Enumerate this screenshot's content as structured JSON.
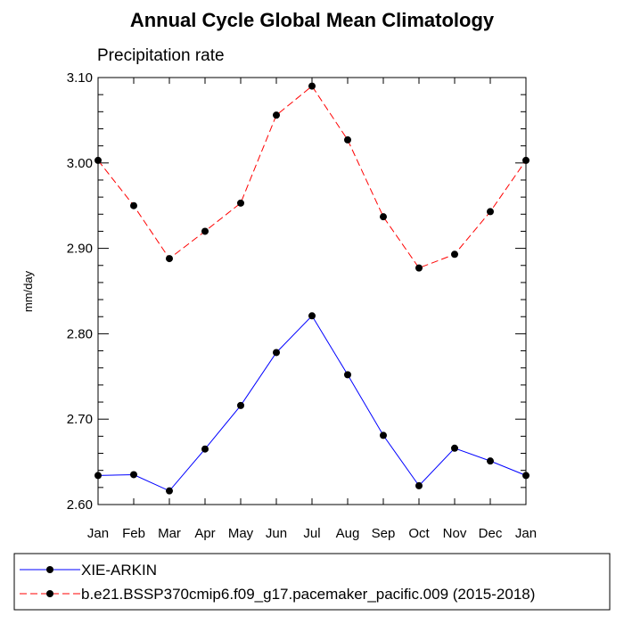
{
  "chart_data": {
    "type": "line",
    "title": "Annual Cycle Global Mean Climatology",
    "subtitle": "Precipitation rate",
    "ylabel": "mm/day",
    "xlabel": "",
    "categories": [
      "Jan",
      "Feb",
      "Mar",
      "Apr",
      "May",
      "Jun",
      "Jul",
      "Aug",
      "Sep",
      "Oct",
      "Nov",
      "Dec",
      "Jan"
    ],
    "ylim": [
      2.6,
      3.1
    ],
    "yticks": [
      "2.60",
      "2.70",
      "2.80",
      "2.90",
      "3.00",
      "3.10"
    ],
    "grid": false,
    "legend_position": "bottom",
    "series": [
      {
        "name": "XIE-ARKIN",
        "color": "#0000ff",
        "dash": "solid",
        "values": [
          2.634,
          2.635,
          2.616,
          2.665,
          2.716,
          2.778,
          2.821,
          2.752,
          2.681,
          2.622,
          2.666,
          2.651,
          2.634
        ]
      },
      {
        "name": "b.e21.BSSP370cmip6.f09_g17.pacemaker_pacific.009 (2015-2018)",
        "color": "#ff0000",
        "dash": "dashed",
        "values": [
          3.003,
          2.95,
          2.888,
          2.92,
          2.953,
          3.056,
          3.09,
          3.027,
          2.937,
          2.877,
          2.893,
          2.943,
          3.003
        ]
      }
    ]
  }
}
